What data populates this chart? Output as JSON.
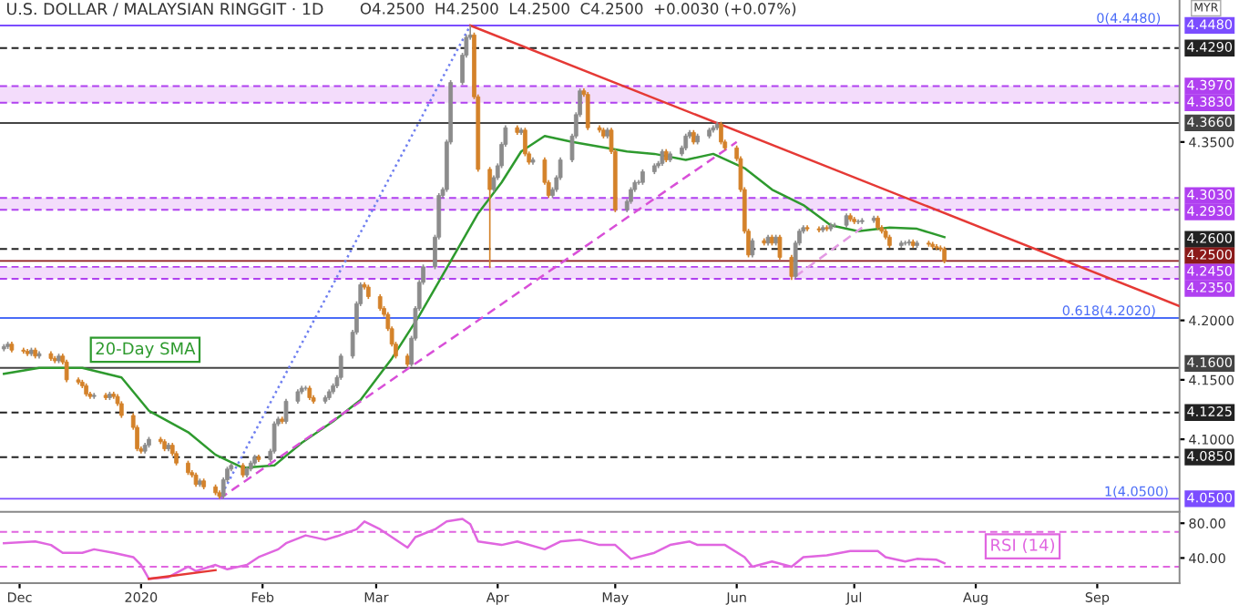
{
  "chart_data": [
    {
      "type": "candlestick",
      "title": "U.S. DOLLAR / MALAYSIAN RINGGIT · 1D",
      "subtitle": "O4.2500  H4.2500  L4.2500  C4.2500  +0.0030 (+0.07%)",
      "ylabel": "MYR",
      "xlim": [
        "2019-11-26",
        "2020-09-22"
      ],
      "ylim": [
        4.039,
        4.4694
      ],
      "yticks": [
        {
          "value": 4.35,
          "label": "4.3500"
        },
        {
          "value": 4.2,
          "label": "4.2000"
        },
        {
          "value": 4.15,
          "label": "4.1500"
        },
        {
          "value": 4.1,
          "label": "4.1000"
        }
      ],
      "tick_labels": "y",
      "bands": [
        {
          "axis": "y",
          "from": 4.383,
          "to": 4.397,
          "color": "#f3dcfb"
        },
        {
          "axis": "y",
          "from": 4.293,
          "to": 4.303,
          "color": "#f3dcfb"
        },
        {
          "axis": "y",
          "from": 4.235,
          "to": 4.245,
          "color": "#f3dcfb"
        }
      ],
      "ref_lines": [
        {
          "axis": "y",
          "value": 4.448,
          "label": "4.4480",
          "color": "#7b4dff"
        },
        {
          "axis": "y",
          "value": 4.429,
          "label": "4.4290",
          "color": "#222222",
          "line_style": "dashed"
        },
        {
          "axis": "y",
          "value": 4.397,
          "label": "4.3970",
          "color": "#b040f0",
          "line_style": "dashed"
        },
        {
          "axis": "y",
          "value": 4.383,
          "label": "4.3830",
          "color": "#b040f0",
          "line_style": "dashed"
        },
        {
          "axis": "y",
          "value": 4.366,
          "label": "4.3660",
          "color": "#444444"
        },
        {
          "axis": "y",
          "value": 4.303,
          "label": "4.3030",
          "color": "#b040f0",
          "line_style": "dashed"
        },
        {
          "axis": "y",
          "value": 4.293,
          "label": "4.2930",
          "color": "#b040f0",
          "line_style": "dashed"
        },
        {
          "axis": "y",
          "value": 4.26,
          "label": "4.2600",
          "color": "#222222",
          "line_style": "dashed"
        },
        {
          "axis": "y",
          "value": 4.25,
          "label": "4.2500",
          "color": "#8b1a1a"
        },
        {
          "axis": "y",
          "value": 4.245,
          "label": "4.2450",
          "color": "#b040f0",
          "line_style": "dashed"
        },
        {
          "axis": "y",
          "value": 4.235,
          "label": "4.2350",
          "color": "#b040f0",
          "line_style": "dashed"
        },
        {
          "axis": "y",
          "value": 4.202,
          "color": "#4a6cf7"
        },
        {
          "axis": "y",
          "value": 4.16,
          "label": "4.1600",
          "color": "#444444"
        },
        {
          "axis": "y",
          "value": 4.1225,
          "label": "4.1225",
          "color": "#222222",
          "line_style": "dashed"
        },
        {
          "axis": "y",
          "value": 4.085,
          "label": "4.0850",
          "color": "#222222",
          "line_style": "dashed"
        },
        {
          "axis": "y",
          "value": 4.05,
          "label": "4.0500",
          "color": "#7b4dff"
        }
      ],
      "annotations": [
        {
          "text": "0(4.4480)",
          "x": "2020-09-09",
          "y": 4.448
        },
        {
          "text": "0.618(4.2020)",
          "x": "2020-09-04",
          "y": 4.202
        },
        {
          "text": "1(4.0500)",
          "x": "2020-09-11",
          "y": 4.05
        }
      ],
      "series": [
        {
          "x": [
            "2019-11-27",
            "2019-11-28",
            "2019-11-29",
            "2019-12-02",
            "2019-12-03",
            "2019-12-04",
            "2019-12-05",
            "2019-12-06",
            "2019-12-09",
            "2019-12-10",
            "2019-12-11",
            "2019-12-12",
            "2019-12-13",
            "2019-12-16",
            "2019-12-17",
            "2019-12-18",
            "2019-12-19",
            "2019-12-20",
            "2019-12-23",
            "2019-12-24",
            "2019-12-25",
            "2019-12-26",
            "2019-12-27",
            "2019-12-30",
            "2019-12-31",
            "2020-01-01",
            "2020-01-02",
            "2020-01-03",
            "2020-01-06",
            "2020-01-07",
            "2020-01-08",
            "2020-01-09",
            "2020-01-10",
            "2020-01-13",
            "2020-01-14",
            "2020-01-15",
            "2020-01-16",
            "2020-01-17",
            "2020-01-20",
            "2020-01-21",
            "2020-01-22",
            "2020-01-23",
            "2020-01-24",
            "2020-01-27",
            "2020-01-28",
            "2020-01-29",
            "2020-01-30",
            "2020-01-31",
            "2020-02-03",
            "2020-02-04",
            "2020-02-05",
            "2020-02-06",
            "2020-02-07",
            "2020-02-10",
            "2020-02-11",
            "2020-02-12",
            "2020-02-13",
            "2020-02-14",
            "2020-02-17",
            "2020-02-18",
            "2020-02-19",
            "2020-02-20",
            "2020-02-21",
            "2020-02-24",
            "2020-02-25",
            "2020-02-26",
            "2020-02-27",
            "2020-02-28",
            "2020-03-02",
            "2020-03-03",
            "2020-03-04",
            "2020-03-05",
            "2020-03-06",
            "2020-03-09",
            "2020-03-10",
            "2020-03-11",
            "2020-03-12",
            "2020-03-13",
            "2020-03-16",
            "2020-03-17",
            "2020-03-18",
            "2020-03-19",
            "2020-03-20",
            "2020-03-23",
            "2020-03-24",
            "2020-03-25",
            "2020-03-26",
            "2020-03-27",
            "2020-03-30",
            "2020-03-31",
            "2020-04-01",
            "2020-04-02",
            "2020-04-03",
            "2020-04-06",
            "2020-04-07",
            "2020-04-08",
            "2020-04-09",
            "2020-04-10",
            "2020-04-13",
            "2020-04-14",
            "2020-04-15",
            "2020-04-16",
            "2020-04-17",
            "2020-04-20",
            "2020-04-21",
            "2020-04-22",
            "2020-04-23",
            "2020-04-24",
            "2020-04-27",
            "2020-04-28",
            "2020-04-29",
            "2020-04-30",
            "2020-05-01",
            "2020-05-04",
            "2020-05-05",
            "2020-05-06",
            "2020-05-07",
            "2020-05-08",
            "2020-05-11",
            "2020-05-12",
            "2020-05-13",
            "2020-05-14",
            "2020-05-15",
            "2020-05-18",
            "2020-05-19",
            "2020-05-20",
            "2020-05-21",
            "2020-05-22",
            "2020-05-25",
            "2020-05-26",
            "2020-05-27",
            "2020-05-28",
            "2020-05-29",
            "2020-06-01",
            "2020-06-02",
            "2020-06-03",
            "2020-06-04",
            "2020-06-05",
            "2020-06-08",
            "2020-06-09",
            "2020-06-10",
            "2020-06-11",
            "2020-06-12",
            "2020-06-15",
            "2020-06-16",
            "2020-06-17",
            "2020-06-18",
            "2020-06-19",
            "2020-06-22",
            "2020-06-23",
            "2020-06-24",
            "2020-06-25",
            "2020-06-26",
            "2020-06-29",
            "2020-06-30",
            "2020-07-01",
            "2020-07-02",
            "2020-07-03",
            "2020-07-06",
            "2020-07-07",
            "2020-07-08",
            "2020-07-09",
            "2020-07-10",
            "2020-07-13",
            "2020-07-14",
            "2020-07-15",
            "2020-07-16",
            "2020-07-17",
            "2020-07-20",
            "2020-07-21",
            "2020-07-22",
            "2020-07-23",
            "2020-07-24"
          ],
          "ohlc": [
            [
              4.176,
              4.18,
              4.174,
              4.178
            ],
            [
              4.178,
              4.182,
              4.176,
              4.18
            ],
            [
              4.18,
              4.182,
              4.173,
              4.175
            ],
            [
              4.175,
              4.177,
              4.172,
              4.174
            ],
            [
              4.174,
              4.176,
              4.17,
              4.172
            ],
            [
              4.172,
              4.177,
              4.17,
              4.175
            ],
            [
              4.175,
              4.177,
              4.168,
              4.17
            ],
            [
              4.17,
              4.174,
              4.168,
              4.172
            ],
            [
              4.172,
              4.174,
              4.166,
              4.168
            ],
            [
              4.168,
              4.17,
              4.164,
              4.166
            ],
            [
              4.166,
              4.172,
              4.164,
              4.17
            ],
            [
              4.17,
              4.172,
              4.163,
              4.165
            ],
            [
              4.165,
              4.167,
              4.148,
              4.15
            ],
            [
              4.15,
              4.152,
              4.146,
              4.148
            ],
            [
              4.148,
              4.15,
              4.143,
              4.145
            ],
            [
              4.145,
              4.147,
              4.136,
              4.138
            ],
            [
              4.138,
              4.14,
              4.134,
              4.136
            ],
            [
              4.136,
              4.139,
              4.134,
              4.137
            ],
            [
              4.137,
              4.139,
              4.133,
              4.135
            ],
            [
              4.135,
              4.14,
              4.133,
              4.138
            ],
            [
              4.138,
              4.14,
              4.134,
              4.136
            ],
            [
              4.136,
              4.138,
              4.128,
              4.13
            ],
            [
              4.13,
              4.132,
              4.118,
              4.12
            ],
            [
              4.12,
              4.122,
              4.108,
              4.11
            ],
            [
              4.11,
              4.112,
              4.09,
              4.092
            ],
            [
              4.092,
              4.094,
              4.088,
              4.09
            ],
            [
              4.09,
              4.097,
              4.088,
              4.095
            ],
            [
              4.095,
              4.102,
              4.093,
              4.1
            ],
            [
              4.1,
              4.102,
              4.096,
              4.098
            ],
            [
              4.098,
              4.1,
              4.09,
              4.092
            ],
            [
              4.092,
              4.097,
              4.09,
              4.095
            ],
            [
              4.095,
              4.097,
              4.086,
              4.088
            ],
            [
              4.088,
              4.09,
              4.078,
              4.08
            ],
            [
              4.08,
              4.082,
              4.07,
              4.072
            ],
            [
              4.072,
              4.074,
              4.068,
              4.07
            ],
            [
              4.07,
              4.072,
              4.06,
              4.062
            ],
            [
              4.062,
              4.067,
              4.06,
              4.065
            ],
            [
              4.065,
              4.067,
              4.058,
              4.06
            ],
            [
              4.06,
              4.062,
              4.053,
              4.055
            ],
            [
              4.055,
              4.057,
              4.05,
              4.052
            ],
            [
              4.052,
              4.068,
              4.05,
              4.066
            ],
            [
              4.066,
              4.077,
              4.064,
              4.075
            ],
            [
              4.075,
              4.08,
              4.073,
              4.078
            ],
            [
              4.078,
              4.08,
              4.068,
              4.07
            ],
            [
              4.07,
              4.077,
              4.068,
              4.075
            ],
            [
              4.075,
              4.082,
              4.073,
              4.08
            ],
            [
              4.08,
              4.087,
              4.078,
              4.085
            ],
            [
              4.085,
              4.087,
              4.081,
              4.083
            ],
            [
              4.083,
              4.092,
              4.081,
              4.09
            ],
            [
              4.09,
              4.115,
              4.088,
              4.113
            ],
            [
              4.113,
              4.119,
              4.111,
              4.117
            ],
            [
              4.117,
              4.119,
              4.113,
              4.115
            ],
            [
              4.115,
              4.134,
              4.113,
              4.132
            ],
            [
              4.132,
              4.142,
              4.13,
              4.14
            ],
            [
              4.14,
              4.145,
              4.138,
              4.143
            ],
            [
              4.143,
              4.145,
              4.141,
              4.143
            ],
            [
              4.143,
              4.145,
              4.133,
              4.135
            ],
            [
              4.135,
              4.137,
              4.13,
              4.132
            ],
            [
              4.132,
              4.137,
              4.13,
              4.135
            ],
            [
              4.135,
              4.142,
              4.133,
              4.14
            ],
            [
              4.14,
              4.147,
              4.138,
              4.145
            ],
            [
              4.145,
              4.154,
              4.143,
              4.152
            ],
            [
              4.152,
              4.172,
              4.15,
              4.17
            ],
            [
              4.17,
              4.192,
              4.168,
              4.19
            ],
            [
              4.19,
              4.216,
              4.188,
              4.214
            ],
            [
              4.214,
              4.232,
              4.212,
              4.23
            ],
            [
              4.23,
              4.232,
              4.226,
              4.228
            ],
            [
              4.228,
              4.23,
              4.218,
              4.22
            ],
            [
              4.22,
              4.222,
              4.208,
              4.21
            ],
            [
              4.21,
              4.212,
              4.203,
              4.205
            ],
            [
              4.205,
              4.207,
              4.191,
              4.193
            ],
            [
              4.193,
              4.195,
              4.178,
              4.18
            ],
            [
              4.18,
              4.182,
              4.168,
              4.17
            ],
            [
              4.17,
              4.172,
              4.161,
              4.163
            ],
            [
              4.163,
              4.187,
              4.161,
              4.185
            ],
            [
              4.185,
              4.212,
              4.183,
              4.21
            ],
            [
              4.21,
              4.234,
              4.208,
              4.232
            ],
            [
              4.232,
              4.247,
              4.23,
              4.245
            ],
            [
              4.245,
              4.272,
              4.243,
              4.27
            ],
            [
              4.27,
              4.307,
              4.268,
              4.305
            ],
            [
              4.305,
              4.312,
              4.303,
              4.31
            ],
            [
              4.31,
              4.352,
              4.308,
              4.35
            ],
            [
              4.35,
              4.402,
              4.348,
              4.4
            ],
            [
              4.4,
              4.425,
              4.398,
              4.423
            ],
            [
              4.423,
              4.44,
              4.421,
              4.438
            ],
            [
              4.438,
              4.448,
              4.436,
              4.44
            ],
            [
              4.44,
              4.442,
              4.386,
              4.388
            ],
            [
              4.388,
              4.39,
              4.325,
              4.327
            ],
            [
              4.327,
              4.329,
              4.244,
              4.31
            ],
            [
              4.31,
              4.322,
              4.308,
              4.32
            ],
            [
              4.32,
              4.332,
              4.318,
              4.33
            ],
            [
              4.33,
              4.35,
              4.328,
              4.348
            ],
            [
              4.348,
              4.364,
              4.346,
              4.362
            ],
            [
              4.362,
              4.364,
              4.356,
              4.358
            ],
            [
              4.358,
              4.362,
              4.356,
              4.36
            ],
            [
              4.36,
              4.362,
              4.338,
              4.34
            ],
            [
              4.34,
              4.342,
              4.331,
              4.333
            ],
            [
              4.333,
              4.337,
              4.331,
              4.335
            ],
            [
              4.335,
              4.337,
              4.314,
              4.316
            ],
            [
              4.316,
              4.318,
              4.303,
              4.305
            ],
            [
              4.305,
              4.312,
              4.303,
              4.31
            ],
            [
              4.31,
              4.322,
              4.308,
              4.32
            ],
            [
              4.32,
              4.337,
              4.318,
              4.335
            ],
            [
              4.335,
              4.357,
              4.333,
              4.355
            ],
            [
              4.355,
              4.375,
              4.353,
              4.373
            ],
            [
              4.373,
              4.395,
              4.371,
              4.393
            ],
            [
              4.393,
              4.395,
              4.388,
              4.39
            ],
            [
              4.39,
              4.392,
              4.36,
              4.362
            ],
            [
              4.362,
              4.364,
              4.358,
              4.36
            ],
            [
              4.36,
              4.362,
              4.353,
              4.355
            ],
            [
              4.355,
              4.362,
              4.353,
              4.36
            ],
            [
              4.36,
              4.362,
              4.34,
              4.342
            ],
            [
              4.342,
              4.344,
              4.291,
              4.293
            ],
            [
              4.293,
              4.302,
              4.291,
              4.3
            ],
            [
              4.3,
              4.312,
              4.298,
              4.31
            ],
            [
              4.31,
              4.318,
              4.308,
              4.316
            ],
            [
              4.316,
              4.318,
              4.314,
              4.316
            ],
            [
              4.316,
              4.327,
              4.314,
              4.325
            ],
            [
              4.325,
              4.332,
              4.323,
              4.33
            ],
            [
              4.33,
              4.334,
              4.328,
              4.332
            ],
            [
              4.332,
              4.344,
              4.33,
              4.342
            ],
            [
              4.342,
              4.344,
              4.333,
              4.335
            ],
            [
              4.335,
              4.342,
              4.333,
              4.34
            ],
            [
              4.34,
              4.347,
              4.338,
              4.345
            ],
            [
              4.345,
              4.357,
              4.343,
              4.355
            ],
            [
              4.355,
              4.36,
              4.353,
              4.358
            ],
            [
              4.358,
              4.36,
              4.348,
              4.35
            ],
            [
              4.35,
              4.357,
              4.348,
              4.355
            ],
            [
              4.355,
              4.362,
              4.353,
              4.36
            ],
            [
              4.36,
              4.364,
              4.358,
              4.362
            ],
            [
              4.362,
              4.367,
              4.36,
              4.365
            ],
            [
              4.365,
              4.367,
              4.348,
              4.35
            ],
            [
              4.35,
              4.352,
              4.343,
              4.345
            ],
            [
              4.345,
              4.347,
              4.334,
              4.336
            ],
            [
              4.336,
              4.338,
              4.308,
              4.31
            ],
            [
              4.31,
              4.312,
              4.273,
              4.275
            ],
            [
              4.275,
              4.277,
              4.253,
              4.255
            ],
            [
              4.255,
              4.269,
              4.253,
              4.267
            ],
            [
              4.267,
              4.269,
              4.263,
              4.265
            ],
            [
              4.265,
              4.272,
              4.263,
              4.27
            ],
            [
              4.27,
              4.272,
              4.263,
              4.265
            ],
            [
              4.265,
              4.272,
              4.263,
              4.27
            ],
            [
              4.27,
              4.272,
              4.251,
              4.253
            ],
            [
              4.253,
              4.255,
              4.234,
              4.237
            ],
            [
              4.237,
              4.267,
              4.235,
              4.265
            ],
            [
              4.265,
              4.277,
              4.263,
              4.275
            ],
            [
              4.275,
              4.28,
              4.273,
              4.278
            ],
            [
              4.278,
              4.28,
              4.275,
              4.277
            ],
            [
              4.277,
              4.279,
              4.274,
              4.276
            ],
            [
              4.276,
              4.28,
              4.274,
              4.278
            ],
            [
              4.278,
              4.28,
              4.275,
              4.277
            ],
            [
              4.277,
              4.282,
              4.275,
              4.28
            ],
            [
              4.28,
              4.282,
              4.278,
              4.28
            ],
            [
              4.28,
              4.29,
              4.278,
              4.288
            ],
            [
              4.288,
              4.29,
              4.283,
              4.285
            ],
            [
              4.285,
              4.287,
              4.281,
              4.283
            ],
            [
              4.283,
              4.285,
              4.281,
              4.283
            ],
            [
              4.283,
              4.286,
              4.281,
              4.284
            ],
            [
              4.284,
              4.288,
              4.282,
              4.286
            ],
            [
              4.286,
              4.288,
              4.276,
              4.278
            ],
            [
              4.278,
              4.28,
              4.273,
              4.275
            ],
            [
              4.275,
              4.277,
              4.268,
              4.27
            ],
            [
              4.27,
              4.272,
              4.261,
              4.263
            ],
            [
              4.263,
              4.267,
              4.261,
              4.265
            ],
            [
              4.265,
              4.267,
              4.263,
              4.265
            ],
            [
              4.265,
              4.268,
              4.263,
              4.266
            ],
            [
              4.266,
              4.268,
              4.261,
              4.263
            ],
            [
              4.263,
              4.267,
              4.261,
              4.265
            ],
            [
              4.265,
              4.267,
              4.262,
              4.264
            ],
            [
              4.264,
              4.266,
              4.26,
              4.262
            ],
            [
              4.262,
              4.264,
              4.259,
              4.261
            ],
            [
              4.261,
              4.263,
              4.258,
              4.26
            ],
            [
              4.26,
              4.262,
              4.248,
              4.25
            ]
          ],
          "colors": [
            "#8c8c8c",
            "#8c8c8c",
            "#d4822a",
            "#d4822a",
            "#d4822a",
            "#8c8c8c",
            "#d4822a",
            "#8c8c8c",
            "#d4822a",
            "#d4822a",
            "#8c8c8c",
            "#d4822a",
            "#d4822a",
            "#d4822a",
            "#d4822a",
            "#d4822a",
            "#d4822a",
            "#8c8c8c",
            "#d4822a",
            "#8c8c8c",
            "#d4822a",
            "#d4822a",
            "#d4822a",
            "#d4822a",
            "#d4822a",
            "#d4822a",
            "#8c8c8c",
            "#8c8c8c",
            "#d4822a",
            "#d4822a",
            "#8c8c8c",
            "#d4822a",
            "#d4822a",
            "#d4822a",
            "#d4822a",
            "#d4822a",
            "#8c8c8c",
            "#d4822a",
            "#d4822a",
            "#d4822a",
            "#8c8c8c",
            "#8c8c8c",
            "#8c8c8c",
            "#d4822a",
            "#8c8c8c",
            "#8c8c8c",
            "#8c8c8c",
            "#d4822a",
            "#8c8c8c",
            "#8c8c8c",
            "#8c8c8c",
            "#d4822a",
            "#8c8c8c",
            "#8c8c8c",
            "#8c8c8c",
            "#8c8c8c",
            "#d4822a",
            "#d4822a",
            "#8c8c8c",
            "#8c8c8c",
            "#8c8c8c",
            "#8c8c8c",
            "#8c8c8c",
            "#8c8c8c",
            "#8c8c8c",
            "#8c8c8c",
            "#d4822a",
            "#d4822a",
            "#d4822a",
            "#d4822a",
            "#d4822a",
            "#d4822a",
            "#d4822a",
            "#d4822a",
            "#8c8c8c",
            "#8c8c8c",
            "#8c8c8c",
            "#8c8c8c",
            "#8c8c8c",
            "#8c8c8c",
            "#8c8c8c",
            "#8c8c8c",
            "#8c8c8c",
            "#8c8c8c",
            "#8c8c8c",
            "#8c8c8c",
            "#d4822a",
            "#d4822a",
            "#d4822a",
            "#8c8c8c",
            "#8c8c8c",
            "#8c8c8c",
            "#8c8c8c",
            "#d4822a",
            "#8c8c8c",
            "#d4822a",
            "#d4822a",
            "#8c8c8c",
            "#d4822a",
            "#d4822a",
            "#8c8c8c",
            "#8c8c8c",
            "#8c8c8c",
            "#8c8c8c",
            "#8c8c8c",
            "#8c8c8c",
            "#d4822a",
            "#d4822a",
            "#d4822a",
            "#d4822a",
            "#8c8c8c",
            "#d4822a",
            "#d4822a",
            "#8c8c8c",
            "#8c8c8c",
            "#8c8c8c",
            "#8c8c8c",
            "#8c8c8c",
            "#8c8c8c",
            "#8c8c8c",
            "#8c8c8c",
            "#d4822a",
            "#8c8c8c",
            "#8c8c8c",
            "#8c8c8c",
            "#8c8c8c",
            "#d4822a",
            "#8c8c8c",
            "#8c8c8c",
            "#8c8c8c",
            "#8c8c8c",
            "#d4822a",
            "#d4822a",
            "#d4822a",
            "#d4822a",
            "#d4822a",
            "#d4822a",
            "#8c8c8c",
            "#d4822a",
            "#8c8c8c",
            "#d4822a",
            "#8c8c8c",
            "#d4822a",
            "#d4822a",
            "#8c8c8c",
            "#8c8c8c",
            "#8c8c8c",
            "#d4822a",
            "#d4822a",
            "#8c8c8c",
            "#d4822a",
            "#8c8c8c",
            "#8c8c8c",
            "#8c8c8c",
            "#d4822a",
            "#d4822a",
            "#8c8c8c",
            "#8c8c8c",
            "#8c8c8c",
            "#d4822a",
            "#d4822a",
            "#d4822a",
            "#d4822a",
            "#8c8c8c",
            "#8c8c8c",
            "#8c8c8c",
            "#d4822a",
            "#8c8c8c",
            "#d4822a",
            "#d4822a",
            "#d4822a",
            "#d4822a",
            "#d4822a"
          ]
        },
        {
          "type": "line",
          "name": "20-Day SMA",
          "color": "#2e9a2e",
          "x": [
            "2019-11-27",
            "2019-12-06",
            "2019-12-17",
            "2019-12-27",
            "2020-01-03",
            "2020-01-13",
            "2020-01-20",
            "2020-01-27",
            "2020-02-04",
            "2020-02-11",
            "2020-02-19",
            "2020-02-26",
            "2020-03-05",
            "2020-03-12",
            "2020-03-19",
            "2020-03-27",
            "2020-04-02",
            "2020-04-07",
            "2020-04-13",
            "2020-04-20",
            "2020-05-04",
            "2020-05-11",
            "2020-05-19",
            "2020-05-26",
            "2020-06-03",
            "2020-06-10",
            "2020-06-18",
            "2020-06-25",
            "2020-07-02",
            "2020-07-10",
            "2020-07-17",
            "2020-07-24"
          ],
          "values": [
            4.155,
            4.16,
            4.16,
            4.152,
            4.124,
            4.106,
            4.087,
            4.076,
            4.078,
            4.097,
            4.115,
            4.133,
            4.168,
            4.204,
            4.244,
            4.29,
            4.316,
            4.342,
            4.355,
            4.35,
            4.342,
            4.34,
            4.335,
            4.34,
            4.328,
            4.31,
            4.297,
            4.28,
            4.275,
            4.278,
            4.277,
            4.27
          ]
        },
        {
          "type": "line",
          "color": "#e53935",
          "x": [
            "2020-03-25",
            "2020-09-22"
          ],
          "values": [
            4.448,
            4.212
          ]
        },
        {
          "type": "line",
          "color": "#d84fd8",
          "line_style": "dashed",
          "x": [
            "2020-01-21",
            "2020-06-01"
          ],
          "values": [
            4.05,
            4.35
          ]
        },
        {
          "type": "line",
          "color": "#e39ae3",
          "line_style": "dashed",
          "x": [
            "2020-06-16",
            "2020-07-03"
          ],
          "values": [
            4.237,
            4.278
          ]
        },
        {
          "type": "line",
          "color": "#6f7ff0",
          "line_style": "dotted",
          "x": [
            "2020-01-21",
            "2020-03-25"
          ],
          "values": [
            4.05,
            4.448
          ]
        }
      ]
    },
    {
      "type": "line",
      "xlim": [
        "2019-11-26",
        "2020-09-22"
      ],
      "ylim": [
        11,
        91
      ],
      "xticks": [
        {
          "value": "2019-12-01",
          "label": "Dec"
        },
        {
          "value": "2020-01-01",
          "label": "2020"
        },
        {
          "value": "2020-02-01",
          "label": "Feb"
        },
        {
          "value": "2020-03-01",
          "label": "Mar"
        },
        {
          "value": "2020-04-01",
          "label": "Apr"
        },
        {
          "value": "2020-05-01",
          "label": "May"
        },
        {
          "value": "2020-06-01",
          "label": "Jun"
        },
        {
          "value": "2020-07-01",
          "label": "Jul"
        },
        {
          "value": "2020-08-01",
          "label": "Aug"
        },
        {
          "value": "2020-09-01",
          "label": "Sep"
        }
      ],
      "yticks": [
        {
          "value": 80,
          "label": "80.00"
        },
        {
          "value": 40,
          "label": "40.00"
        }
      ],
      "legend": "right",
      "ref_lines": [
        {
          "axis": "y",
          "value": 70,
          "color": "#e066e0",
          "line_style": "dashed"
        },
        {
          "axis": "y",
          "value": 30,
          "color": "#e066e0",
          "line_style": "dashed"
        }
      ],
      "series": [
        {
          "name": "RSI (14)",
          "color": "#e066e0",
          "x": [
            "2019-11-27",
            "2019-12-05",
            "2019-12-09",
            "2019-12-12",
            "2019-12-17",
            "2019-12-20",
            "2019-12-25",
            "2019-12-30",
            "2020-01-01",
            "2020-01-03",
            "2020-01-08",
            "2020-01-13",
            "2020-01-15",
            "2020-01-20",
            "2020-01-23",
            "2020-01-28",
            "2020-01-31",
            "2020-02-05",
            "2020-02-07",
            "2020-02-12",
            "2020-02-17",
            "2020-02-20",
            "2020-02-25",
            "2020-02-27",
            "2020-03-02",
            "2020-03-05",
            "2020-03-09",
            "2020-03-11",
            "2020-03-16",
            "2020-03-19",
            "2020-03-23",
            "2020-03-25",
            "2020-03-27",
            "2020-04-02",
            "2020-04-06",
            "2020-04-13",
            "2020-04-17",
            "2020-04-22",
            "2020-04-27",
            "2020-05-01",
            "2020-05-05",
            "2020-05-11",
            "2020-05-15",
            "2020-05-20",
            "2020-05-22",
            "2020-05-29",
            "2020-06-03",
            "2020-06-05",
            "2020-06-10",
            "2020-06-15",
            "2020-06-18",
            "2020-06-24",
            "2020-06-30",
            "2020-07-07",
            "2020-07-09",
            "2020-07-14",
            "2020-07-17",
            "2020-07-22",
            "2020-07-24"
          ],
          "values": [
            57,
            59,
            55,
            46,
            46,
            50,
            46,
            41,
            32,
            16,
            18,
            30,
            25,
            32,
            27,
            32,
            41,
            50,
            57,
            66,
            61,
            65,
            73,
            82,
            73,
            64,
            52,
            64,
            73,
            82,
            85,
            79,
            59,
            55,
            59,
            50,
            59,
            61,
            55,
            55,
            39,
            46,
            55,
            59,
            55,
            55,
            41,
            30,
            36,
            30,
            41,
            43,
            48,
            48,
            41,
            36,
            39,
            38,
            34
          ]
        },
        {
          "type": "line",
          "color": "#e53935",
          "x": [
            "2020-01-03",
            "2020-01-20"
          ],
          "values": [
            16,
            26
          ]
        }
      ]
    }
  ]
}
